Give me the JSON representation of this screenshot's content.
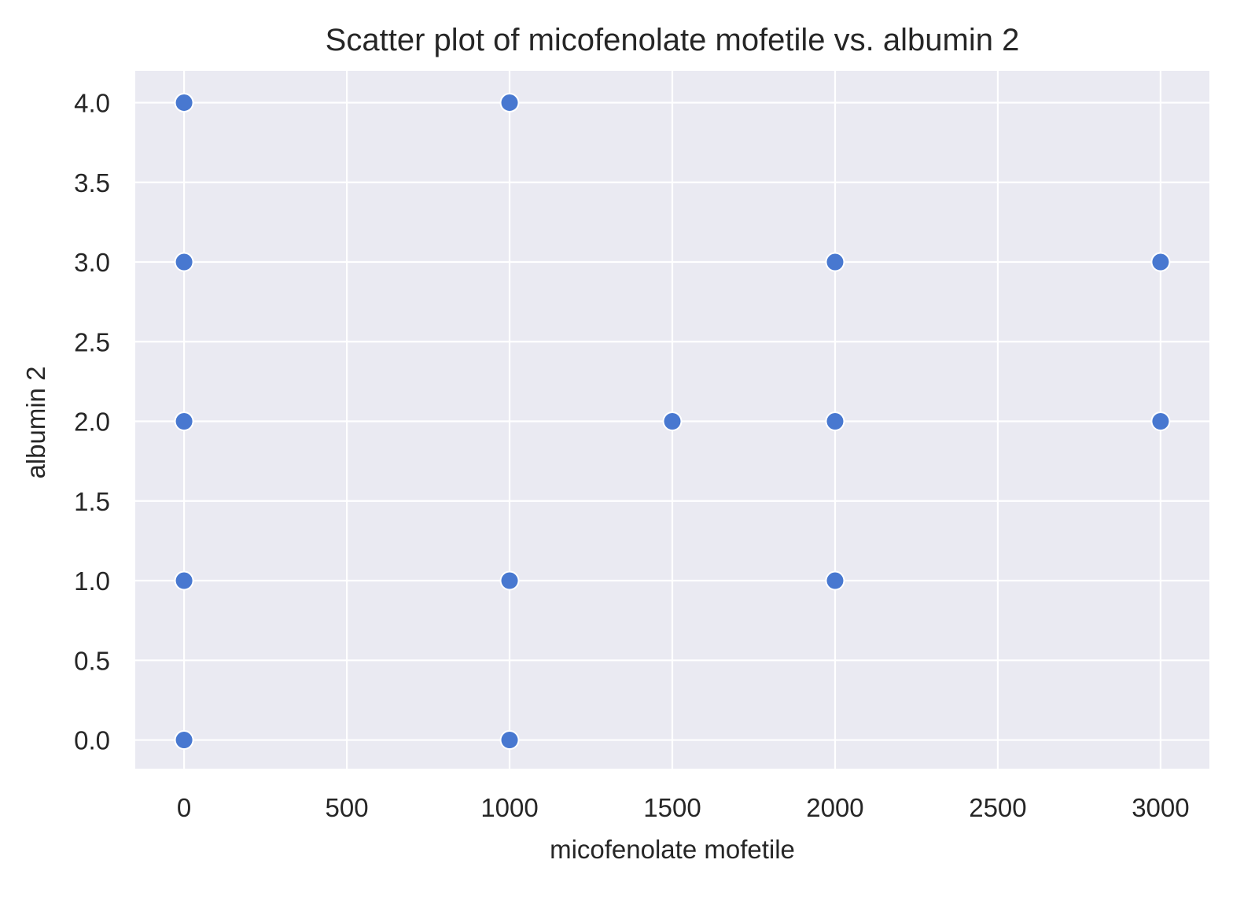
{
  "chart_data": {
    "type": "scatter",
    "title": "Scatter plot of micofenolate mofetile vs. albumin 2",
    "xlabel": "micofenolate mofetile",
    "ylabel": "albumin 2",
    "xlim": [
      -150,
      3150
    ],
    "ylim": [
      -0.18,
      4.2
    ],
    "xticks": [
      0,
      500,
      1000,
      1500,
      2000,
      2500,
      3000
    ],
    "xtick_labels": [
      "0",
      "500",
      "1000",
      "1500",
      "2000",
      "2500",
      "3000"
    ],
    "yticks": [
      0.0,
      0.5,
      1.0,
      1.5,
      2.0,
      2.5,
      3.0,
      3.5,
      4.0
    ],
    "ytick_labels": [
      "0.0",
      "0.5",
      "1.0",
      "1.5",
      "2.0",
      "2.5",
      "3.0",
      "3.5",
      "4.0"
    ],
    "grid": true,
    "series": [
      {
        "points": [
          {
            "x": 0,
            "y": 4.0
          },
          {
            "x": 0,
            "y": 3.0
          },
          {
            "x": 0,
            "y": 2.0
          },
          {
            "x": 0,
            "y": 1.0
          },
          {
            "x": 0,
            "y": 0.0
          },
          {
            "x": 1000,
            "y": 4.0
          },
          {
            "x": 1000,
            "y": 1.0
          },
          {
            "x": 1000,
            "y": 0.0
          },
          {
            "x": 1500,
            "y": 2.0
          },
          {
            "x": 2000,
            "y": 3.0
          },
          {
            "x": 2000,
            "y": 2.0
          },
          {
            "x": 2000,
            "y": 1.0
          },
          {
            "x": 3000,
            "y": 3.0
          },
          {
            "x": 3000,
            "y": 2.0
          }
        ]
      }
    ],
    "colors": {
      "plot_background": "#eaeaf2",
      "grid": "#ffffff",
      "marker": "#4878d0",
      "marker_edge": "#ffffff",
      "text": "#262626"
    }
  }
}
